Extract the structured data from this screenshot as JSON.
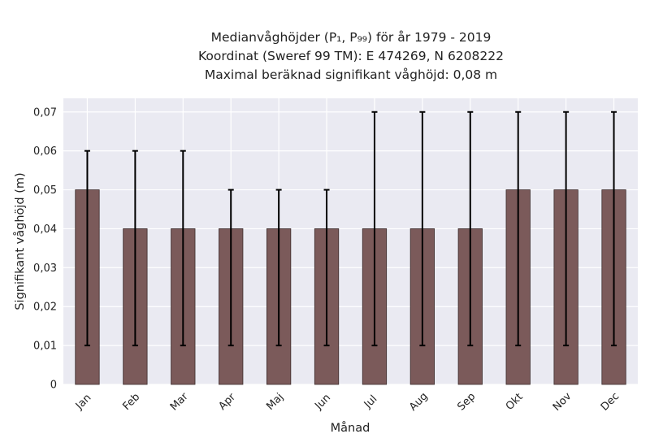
{
  "chart_data": {
    "type": "bar",
    "title_lines": [
      "Medianvåghöjder (P₁, P₉₉) för år 1979 - 2019",
      "Koordinat (Sweref 99 TM): E 474269, N 6208222",
      "Maximal beräknad signifikant våghöjd: 0,08 m"
    ],
    "xlabel": "Månad",
    "ylabel": "Signifikant våghöjd (m)",
    "categories": [
      "Jan",
      "Feb",
      "Mar",
      "Apr",
      "Maj",
      "Jun",
      "Jul",
      "Aug",
      "Sep",
      "Okt",
      "Nov",
      "Dec"
    ],
    "values": [
      0.05,
      0.04,
      0.04,
      0.04,
      0.04,
      0.04,
      0.04,
      0.04,
      0.04,
      0.05,
      0.05,
      0.05
    ],
    "error_low": [
      0.01,
      0.01,
      0.01,
      0.01,
      0.01,
      0.01,
      0.01,
      0.01,
      0.01,
      0.01,
      0.01,
      0.01
    ],
    "error_high": [
      0.06,
      0.06,
      0.06,
      0.05,
      0.05,
      0.05,
      0.07,
      0.07,
      0.07,
      0.07,
      0.07,
      0.07
    ],
    "ylim": [
      0,
      0.0735
    ],
    "yticks": [
      0,
      0.01,
      0.02,
      0.03,
      0.04,
      0.05,
      0.06,
      0.07
    ],
    "ytick_labels": [
      "0",
      "0,01",
      "0,02",
      "0,03",
      "0,04",
      "0,05",
      "0,06",
      "0,07"
    ],
    "grid": true,
    "colors": {
      "bar": "#7b5a5a",
      "bar_edge": "#3c2c2c",
      "error": "#000000",
      "plot_bg": "#eaeaf2",
      "grid": "#ffffff"
    }
  }
}
